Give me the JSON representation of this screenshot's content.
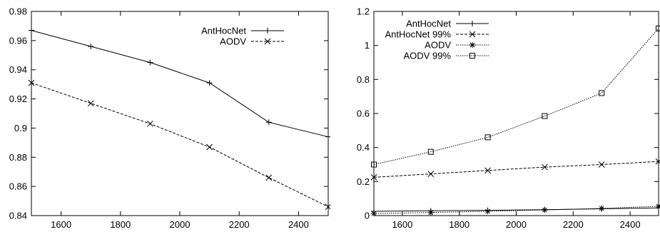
{
  "chart_data": [
    {
      "type": "line",
      "title": "",
      "xlabel": "",
      "ylabel": "",
      "x": [
        1500,
        1700,
        1900,
        2100,
        2300,
        2500
      ],
      "xlim": [
        1500,
        2500
      ],
      "ylim": [
        0.84,
        0.98
      ],
      "xticks": [
        "1600",
        "1800",
        "2000",
        "2200",
        "2400"
      ],
      "yticks": [
        "0.84",
        "0.86",
        "0.88",
        "0.9",
        "0.92",
        "0.94",
        "0.96",
        "0.98"
      ],
      "grid": false,
      "legend_position": "top-right",
      "series": [
        {
          "name": "AntHocNet",
          "marker": "plus",
          "dash": "solid",
          "values": [
            0.967,
            0.956,
            0.945,
            0.931,
            0.904,
            0.894
          ]
        },
        {
          "name": "AODV",
          "marker": "x",
          "dash": "dashed",
          "values": [
            0.931,
            0.917,
            0.903,
            0.887,
            0.866,
            0.846
          ]
        }
      ]
    },
    {
      "type": "line",
      "title": "",
      "xlabel": "",
      "ylabel": "",
      "x": [
        1500,
        1700,
        1900,
        2100,
        2300,
        2500
      ],
      "xlim": [
        1500,
        2500
      ],
      "ylim": [
        0,
        1.2
      ],
      "xticks": [
        "1600",
        "1800",
        "2000",
        "2200",
        "2400"
      ],
      "yticks": [
        "0",
        "0.2",
        "0.4",
        "0.6",
        "0.8",
        "1",
        "1.2"
      ],
      "grid": false,
      "legend_position": "top-left",
      "series": [
        {
          "name": "AntHocNet",
          "marker": "plus",
          "dash": "solid",
          "values": [
            0.025,
            0.028,
            0.031,
            0.035,
            0.04,
            0.045
          ]
        },
        {
          "name": "AntHocNet 99%",
          "marker": "x",
          "dash": "dashed",
          "values": [
            0.225,
            0.245,
            0.265,
            0.285,
            0.3,
            0.318
          ]
        },
        {
          "name": "AODV",
          "marker": "star",
          "dash": "dotted",
          "values": [
            0.012,
            0.018,
            0.025,
            0.033,
            0.042,
            0.055
          ]
        },
        {
          "name": "AODV 99%",
          "marker": "square",
          "dash": "dotted",
          "values": [
            0.3,
            0.375,
            0.46,
            0.585,
            0.72,
            1.1
          ]
        }
      ]
    }
  ]
}
